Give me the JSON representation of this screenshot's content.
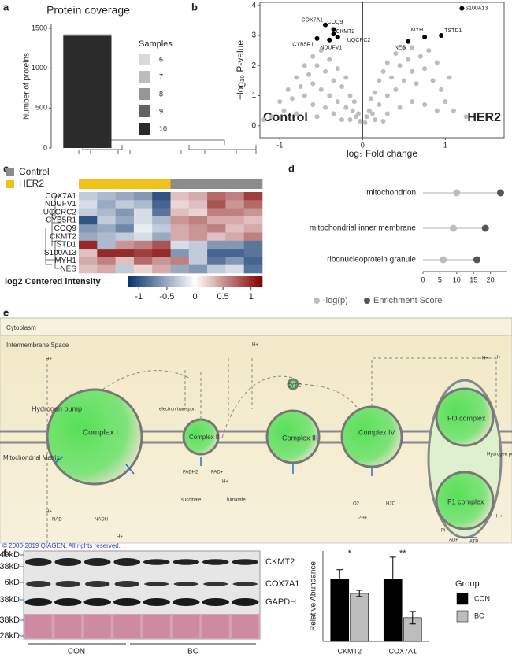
{
  "panels": [
    "a",
    "b",
    "c",
    "d",
    "e",
    "f"
  ],
  "chart_data": [
    {
      "type": "stacked_bar",
      "title": "Protein coverage",
      "ylabel": "Number of proteins",
      "categories": [
        null
      ],
      "legend_title": "Samples",
      "series": [
        {
          "name": "6",
          "color": "#d9d9d9",
          "values": [
            4
          ]
        },
        {
          "name": "7",
          "color": "#bdbdbd",
          "values": [
            5
          ]
        },
        {
          "name": "8",
          "color": "#969696",
          "values": [
            6
          ]
        },
        {
          "name": "9",
          "color": "#636363",
          "values": [
            10
          ]
        },
        {
          "name": "10",
          "color": "#2b2b2b",
          "values": [
            1405
          ]
        }
      ],
      "ylim": [
        0,
        1550
      ],
      "yticks": [
        0,
        500,
        1000,
        1500
      ]
    },
    {
      "type": "scatter",
      "xlabel": "log₂ Fold change",
      "ylabel": "−log₁₀ P-value",
      "annotations": [
        "Control",
        "HER2"
      ],
      "xlim": [
        -1.24,
        1.71
      ],
      "xticks": [
        -1,
        0,
        1
      ],
      "ylim": [
        -0.4,
        4.1
      ],
      "yticks": [
        0,
        1,
        2,
        3,
        4
      ],
      "points": {
        "color": "#bdbdbd",
        "x": [
          -1.1,
          -1.0,
          -0.95,
          -0.9,
          -0.85,
          -0.8,
          -0.75,
          -0.7,
          -0.7,
          -0.65,
          -0.6,
          -0.6,
          -0.55,
          -0.5,
          -0.5,
          -0.45,
          -0.4,
          -0.4,
          -0.35,
          -0.3,
          -0.3,
          -0.25,
          -0.2,
          -0.2,
          -0.15,
          -0.12,
          -0.1,
          -0.08,
          -0.05,
          -0.03,
          -0.6,
          -0.8,
          -0.45,
          -0.35,
          -1.2,
          -0.55,
          -0.25,
          -0.15,
          0.03,
          0.05,
          0.08,
          0.1,
          0.12,
          0.15,
          0.2,
          0.2,
          0.25,
          0.3,
          0.3,
          0.35,
          0.4,
          0.4,
          0.45,
          0.5,
          0.5,
          0.55,
          0.6,
          0.6,
          0.65,
          0.7,
          0.75,
          0.8,
          0.85,
          0.9,
          0.95,
          1.0,
          1.05,
          1.1,
          0.15,
          0.3,
          0.45,
          0.6,
          0.75,
          0.9,
          1.25,
          0.25
        ],
        "y": [
          0.3,
          0.8,
          0.5,
          1.2,
          0.9,
          1.6,
          1.3,
          2.0,
          1.0,
          1.7,
          2.3,
          1.4,
          2.0,
          2.5,
          1.2,
          1.8,
          2.2,
          1.0,
          1.5,
          1.9,
          0.8,
          1.3,
          1.6,
          0.6,
          1.0,
          0.5,
          0.8,
          0.3,
          0.4,
          0.15,
          0.7,
          0.4,
          0.6,
          0.4,
          0.2,
          0.3,
          0.2,
          0.2,
          0.1,
          0.3,
          0.5,
          0.9,
          0.4,
          1.1,
          1.5,
          0.7,
          1.8,
          2.1,
          1.0,
          1.6,
          2.4,
          1.2,
          2.0,
          2.6,
          1.5,
          2.2,
          1.8,
          2.6,
          1.4,
          2.3,
          1.9,
          2.5,
          1.5,
          2.1,
          1.2,
          0.8,
          1.6,
          0.5,
          0.2,
          0.4,
          0.6,
          0.8,
          0.7,
          0.5,
          0.3,
          0.15
        ]
      },
      "labeled": {
        "color": "#000",
        "labels": [
          "COX7A1",
          "COQ9",
          "CKMT2",
          "UQCRC2",
          "CYB5R1",
          "NDUFV1",
          "S100A13",
          "TSTD1",
          "MYH1",
          "NES"
        ],
        "x": [
          -0.45,
          -0.35,
          -0.35,
          -0.3,
          -0.55,
          -0.4,
          1.2,
          0.95,
          0.75,
          0.55
        ],
        "y": [
          3.35,
          3.2,
          3.05,
          2.95,
          2.9,
          2.85,
          3.9,
          3.0,
          2.95,
          2.8
        ]
      }
    },
    {
      "type": "heatmap",
      "rows": [
        "COX7A1",
        "NDUFV1",
        "UQCRC2",
        "CYB5R1",
        "COQ9",
        "CKMT2",
        "TSTD1",
        "S100A13",
        "MYH1",
        "NES"
      ],
      "legend": [
        {
          "name": "Control",
          "color": "#8c8c8c"
        },
        {
          "name": "HER2",
          "color": "#f2c21b"
        }
      ],
      "column_groups": [
        1,
        1,
        1,
        1,
        1,
        0,
        0,
        0,
        0,
        0
      ],
      "values": [
        [
          -0.3,
          -0.4,
          -0.5,
          -0.6,
          -1.0,
          0.3,
          0.4,
          0.7,
          0.6,
          0.9
        ],
        [
          -0.2,
          -0.5,
          -0.3,
          -0.4,
          -0.9,
          0.2,
          0.3,
          0.8,
          0.5,
          0.7
        ],
        [
          -0.3,
          -0.4,
          -0.6,
          -0.2,
          -0.8,
          0.3,
          0.2,
          0.6,
          0.6,
          0.5
        ],
        [
          -1.0,
          -0.3,
          -0.5,
          -0.2,
          -0.4,
          0.5,
          0.6,
          0.4,
          0.4,
          0.3
        ],
        [
          -0.6,
          -0.5,
          -0.7,
          -0.1,
          -0.3,
          0.4,
          0.5,
          0.6,
          0.3,
          0.4
        ],
        [
          -0.5,
          -0.4,
          -0.3,
          -0.2,
          -0.5,
          0.4,
          0.5,
          0.3,
          0.4,
          0.6
        ],
        [
          1.0,
          -0.4,
          0.5,
          0.6,
          0.8,
          -0.2,
          -0.3,
          -0.6,
          -0.6,
          -0.8
        ],
        [
          0.3,
          1.0,
          1.0,
          0.9,
          1.0,
          -0.6,
          -0.3,
          -0.9,
          -0.9,
          -0.8
        ],
        [
          0.4,
          0.6,
          0.3,
          0.7,
          0.5,
          0.6,
          -0.3,
          -0.8,
          -0.6,
          -0.9
        ],
        [
          0.3,
          0.4,
          -0.3,
          0.2,
          0.4,
          -0.5,
          -0.6,
          -0.3,
          -0.2,
          -0.8
        ]
      ],
      "colorbar": {
        "title": "log2 Centered intensity",
        "lim": [
          -1.2,
          1.2
        ],
        "ticks": [
          -1,
          -0.5,
          0,
          0.5,
          1
        ],
        "colors": [
          "#08306b",
          "#ffffff",
          "#7f0000"
        ]
      }
    },
    {
      "type": "lollipop",
      "categories": [
        "mitochondrion",
        "mitochondrial inner membrane",
        "ribonucleoprotein granule"
      ],
      "series": [
        {
          "name": "-log(p)",
          "color": "#bdbdbd",
          "values": [
            10,
            9,
            6
          ]
        },
        {
          "name": "Enrichment Score",
          "color": "#555555",
          "values": [
            23,
            18.5,
            16
          ]
        }
      ],
      "xlim": [
        0,
        25
      ],
      "xticks": [
        0,
        5,
        10,
        15,
        20
      ]
    },
    {
      "type": "bar",
      "ylabel": "Relative Abundance",
      "categories": [
        "CKMT2",
        "COX7A1"
      ],
      "annotations": [
        "*",
        "**"
      ],
      "legend_title": "Group",
      "series": [
        {
          "name": "CON",
          "color": "#000000",
          "values": [
            1.0,
            1.0
          ],
          "errors": [
            0.15,
            0.35
          ]
        },
        {
          "name": "BC",
          "color": "#bdbdbd",
          "values": [
            0.77,
            0.38
          ],
          "errors": [
            0.05,
            0.1
          ]
        }
      ],
      "ylim": [
        0,
        1.45
      ]
    }
  ],
  "pathway": {
    "labels": [
      "Cytoplasm",
      "Intermembrane Space",
      "Hydrogen pump",
      "Mitochondrial Matrix",
      "Complex I",
      "Complex II",
      "Complex III",
      "Complex IV",
      "FO complex",
      "F1 complex",
      "electron transport",
      "CYT C",
      "FADH2",
      "FAD+",
      "succinate",
      "fumarate",
      "NAD",
      "NADH",
      "O2",
      "H2O",
      "2H+",
      "ADP",
      "ATP",
      "Pi",
      "Hydrogen pump",
      "H+",
      "H+",
      "H+",
      "H+",
      "H+",
      "H+",
      "H+",
      "H+"
    ],
    "copyright": "© 2000-2019 QIAGEN. All rights reserved."
  },
  "blot": {
    "markers": [
      "49kD",
      "38kD",
      "6kD",
      "38kD",
      "38kD",
      "28kD"
    ],
    "bands": [
      "CKMT2",
      "COX7A1",
      "GAPDH"
    ],
    "groups": [
      "CON",
      "BC"
    ]
  }
}
